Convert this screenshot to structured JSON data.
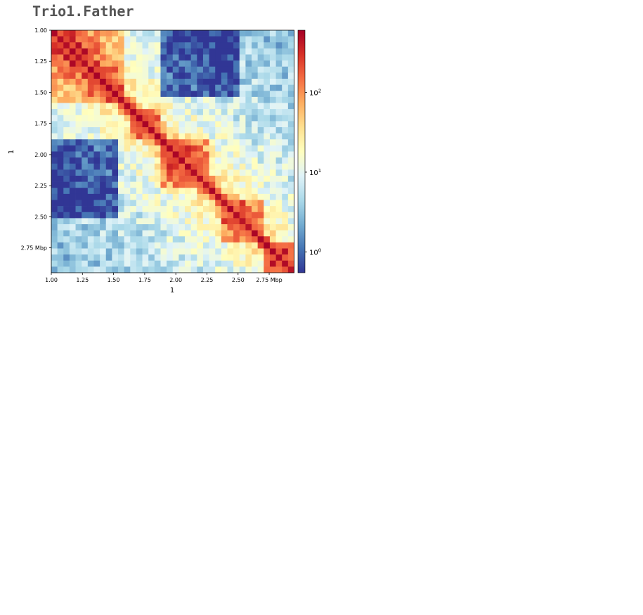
{
  "title": "Trio1.Father",
  "colors": {
    "colormap": "RdYlBu_r",
    "stops": [
      "#313695",
      "#4575b4",
      "#74add1",
      "#abd9e9",
      "#e0f3f8",
      "#ffffbf",
      "#fee090",
      "#fdae61",
      "#f46d43",
      "#d73027",
      "#a50026"
    ]
  },
  "chart_data": {
    "type": "heatmap",
    "title": "Trio1.Father",
    "xlabel": "1",
    "ylabel": "1",
    "x_ticks": [
      "1.00",
      "1.25",
      "1.50",
      "1.75",
      "2.00",
      "2.25",
      "2.50",
      "2.75  Mbp"
    ],
    "y_ticks": [
      "1.00",
      "1.25",
      "1.50",
      "1.75",
      "2.00",
      "2.25",
      "2.50",
      "2.75  Mbp"
    ],
    "tick_values_mbp": [
      1.0,
      1.25,
      1.5,
      1.75,
      2.0,
      2.25,
      2.5,
      2.75
    ],
    "x_range_mbp": [
      1.0,
      2.95
    ],
    "y_range_mbp": [
      1.0,
      2.95
    ],
    "bins": 40,
    "colorbar": {
      "scale": "log",
      "range": [
        0.55,
        600
      ],
      "ticks": [
        1,
        10,
        100
      ],
      "tick_labels": [
        "10",
        "10",
        "10"
      ],
      "tick_exponents": [
        "0",
        "1",
        "2"
      ]
    },
    "domains": [
      [
        0,
        12
      ],
      [
        13,
        18
      ],
      [
        18,
        26
      ],
      [
        28,
        35
      ],
      [
        35,
        40
      ]
    ],
    "depleted_region": {
      "rows": [
        0,
        10
      ],
      "cols": [
        18,
        30
      ]
    },
    "values_description": "Hi-C contact counts per 50 kb bin; diagonal ~300-600, intra-domain ~30-100, inter-domain ~1-10"
  }
}
